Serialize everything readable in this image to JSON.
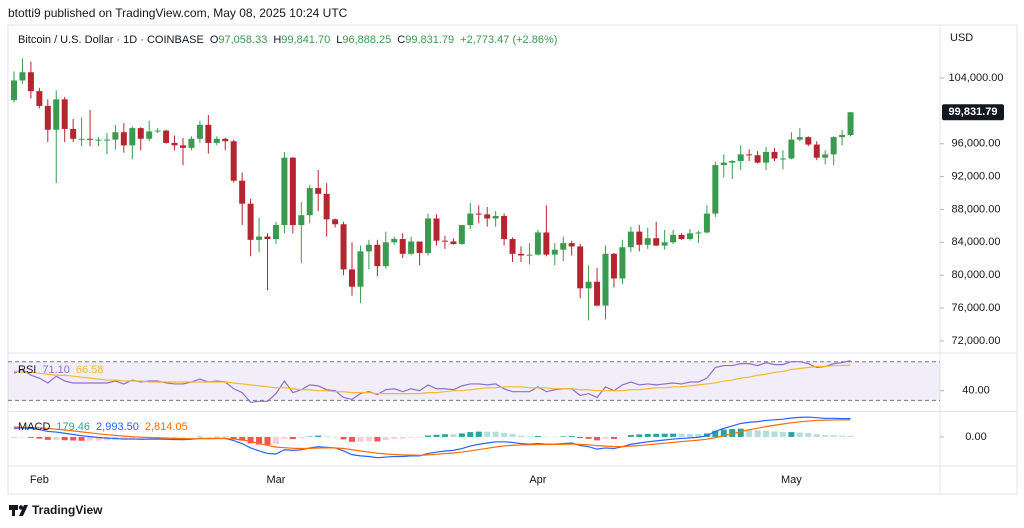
{
  "header": {
    "publisher": "btotti9 published on TradingView.com, May 08, 2025 10:24 UTC",
    "logo": "TradingView"
  },
  "chart_data": [
    {
      "type": "candlestick",
      "title": "Bitcoin / U.S. Dollar · 1D · COINBASE",
      "ohlc_legend": [
        {
          "label": "O",
          "value": "97,058.33"
        },
        {
          "label": "H",
          "value": "99,841.70"
        },
        {
          "label": "L",
          "value": "96,888.25"
        },
        {
          "label": "C",
          "value": "99,831.79"
        }
      ],
      "change": "+2,773.47 (+2.86%)",
      "currency": "USD",
      "up_color": "#3a9a4f",
      "down_color": "#b5252f",
      "categories": [
        null,
        null,
        null,
        "Feb",
        null,
        null,
        null,
        null,
        null,
        null,
        null,
        null,
        null,
        null,
        null,
        null,
        null,
        null,
        null,
        null,
        null,
        null,
        null,
        null,
        null,
        null,
        null,
        null,
        null,
        null,
        null,
        "Mar",
        null,
        null,
        null,
        null,
        null,
        null,
        null,
        null,
        null,
        null,
        null,
        null,
        null,
        null,
        null,
        null,
        null,
        null,
        null,
        null,
        null,
        null,
        null,
        null,
        null,
        null,
        null,
        null,
        null,
        null,
        "Apr",
        null,
        null,
        null,
        null,
        null,
        null,
        null,
        null,
        null,
        null,
        null,
        null,
        null,
        null,
        null,
        null,
        null,
        null,
        null,
        null,
        null,
        null,
        null,
        null,
        null,
        null,
        null,
        null,
        null,
        "May",
        null,
        null,
        null,
        null,
        null,
        null,
        null
      ],
      "open": [
        101300,
        103700,
        104700,
        102400,
        100600,
        97700,
        101400,
        97800,
        96600,
        96600,
        96500,
        96500,
        96500,
        97400,
        95800,
        97900,
        96600,
        97500,
        97600,
        96100,
        95800,
        95500,
        96600,
        98300,
        96100,
        96600,
        96300,
        91500,
        88700,
        84300,
        84700,
        84400,
        86100,
        94300,
        86100,
        87300,
        90600,
        89900,
        86800,
        86200,
        80700,
        78600,
        82900,
        83700,
        81100,
        84000,
        84400,
        82600,
        84100,
        82700,
        86900,
        84200,
        84100,
        83800,
        86100,
        87500,
        87400,
        86900,
        87200,
        84400,
        82600,
        82400,
        82500,
        85200,
        82500,
        83100,
        83900,
        83500,
        78400,
        79200,
        76300,
        82600,
        79600,
        83400,
        85300,
        83700,
        84500,
        83600,
        84000,
        84900,
        84400,
        85100,
        85200,
        87500,
        93400,
        93700,
        93900,
        94700,
        94600,
        93700,
        95000,
        94200,
        94200,
        96500,
        96800,
        95900,
        94300,
        94700,
        96800,
        97058.33
      ],
      "high": [
        104800,
        106400,
        106000,
        102800,
        101400,
        102500,
        101700,
        99000,
        99200,
        100100,
        96800,
        97300,
        98300,
        98500,
        98100,
        98000,
        98800,
        97900,
        97700,
        97000,
        96700,
        96900,
        98800,
        99500,
        96900,
        96700,
        96500,
        92500,
        89300,
        87000,
        85100,
        86500,
        95000,
        94400,
        88900,
        91000,
        92800,
        91200,
        86900,
        86500,
        84000,
        83600,
        84300,
        84300,
        85300,
        84700,
        85100,
        84700,
        84100,
        87500,
        87400,
        84800,
        84500,
        86100,
        88800,
        88500,
        88300,
        87800,
        87500,
        84600,
        83500,
        83900,
        85500,
        88500,
        83900,
        84700,
        84200,
        83800,
        81200,
        80900,
        83600,
        82700,
        84300,
        85900,
        86100,
        85800,
        86500,
        85500,
        85500,
        85100,
        85600,
        85400,
        88500,
        93800,
        94700,
        94000,
        95800,
        95300,
        95100,
        95600,
        95500,
        95200,
        97400,
        97900,
        96900,
        96300,
        95200,
        96900,
        97700,
        99841.7
      ],
      "low": [
        101000,
        103300,
        101500,
        100300,
        96200,
        91200,
        96200,
        96200,
        95700,
        95700,
        95700,
        94700,
        95300,
        94900,
        94100,
        95200,
        96300,
        97300,
        96000,
        95200,
        93400,
        95200,
        96100,
        94800,
        95800,
        95200,
        91300,
        86100,
        82300,
        82800,
        78200,
        83800,
        85100,
        85100,
        81500,
        86300,
        87800,
        84700,
        85800,
        80000,
        77500,
        76600,
        80700,
        79900,
        80800,
        83700,
        82100,
        82400,
        81200,
        82400,
        83600,
        83200,
        83700,
        83700,
        85600,
        86300,
        85900,
        85900,
        83600,
        81600,
        81600,
        81300,
        82400,
        82300,
        81200,
        81700,
        82400,
        77200,
        74500,
        76200,
        74600,
        78500,
        78900,
        82800,
        82900,
        83200,
        83600,
        83100,
        83800,
        84300,
        84200,
        83900,
        85100,
        87100,
        91900,
        91700,
        92800,
        93900,
        93600,
        92800,
        93900,
        92900,
        94100,
        96300,
        95700,
        94000,
        93500,
        93400,
        95800,
        96888.25
      ],
      "close": [
        103700,
        104700,
        102400,
        100600,
        97700,
        101400,
        97800,
        96600,
        96600,
        96500,
        96500,
        96500,
        97400,
        95800,
        97900,
        96600,
        97500,
        97600,
        96100,
        95800,
        95500,
        96600,
        98300,
        96100,
        96600,
        96300,
        91500,
        88700,
        84300,
        84700,
        84400,
        86100,
        94300,
        86100,
        87300,
        90600,
        89900,
        86800,
        86200,
        80700,
        78600,
        82900,
        83700,
        81100,
        84000,
        84400,
        82600,
        84100,
        82700,
        86900,
        84200,
        84100,
        83800,
        86100,
        87500,
        87400,
        86900,
        87200,
        84400,
        82600,
        82400,
        82500,
        85200,
        82500,
        83100,
        83900,
        83500,
        78400,
        79200,
        76300,
        82600,
        79600,
        83400,
        85300,
        83700,
        84500,
        83600,
        84000,
        84900,
        84400,
        85100,
        85200,
        87500,
        93400,
        93700,
        93900,
        94700,
        94600,
        93700,
        95000,
        94200,
        94200,
        96500,
        96800,
        95900,
        94300,
        94700,
        96800,
        97058.33,
        99831.79
      ],
      "last_label": "99,831.79",
      "ylim": [
        70650,
        110450
      ],
      "yticks": [
        {
          "value": 72000,
          "label": "72,000.00"
        },
        {
          "value": 76000,
          "label": "76,000.00"
        },
        {
          "value": 80000,
          "label": "80,000.00"
        },
        {
          "value": 84000,
          "label": "84,000.00"
        },
        {
          "value": 88000,
          "label": "88,000.00"
        },
        {
          "value": 92000,
          "label": "92,000.00"
        },
        {
          "value": 96000,
          "label": "96,000.00"
        },
        {
          "value": 104000,
          "label": "104,000.00"
        }
      ]
    },
    {
      "type": "line",
      "title": "RSI",
      "legend_values": [
        "71.10",
        "66.58"
      ],
      "series": [
        {
          "color": "#8e6fd0",
          "values": [
            58,
            62,
            56,
            53,
            48,
            55,
            50,
            48,
            48,
            48,
            48,
            48,
            50,
            47,
            51,
            49,
            50,
            50,
            48,
            47,
            47,
            49,
            52,
            49,
            50,
            49,
            42,
            38,
            28,
            29,
            29,
            37,
            50,
            38,
            41,
            46,
            45,
            41,
            40,
            33,
            31,
            37,
            39,
            36,
            41,
            42,
            39,
            42,
            40,
            46,
            42,
            42,
            41,
            45,
            47,
            47,
            46,
            47,
            42,
            39,
            39,
            39,
            44,
            39,
            41,
            42,
            42,
            35,
            37,
            33,
            44,
            40,
            46,
            49,
            46,
            47,
            46,
            47,
            48,
            47,
            49,
            49,
            53,
            64,
            66,
            66,
            68,
            68,
            66,
            69,
            67,
            67,
            70,
            70,
            68,
            64,
            65,
            68,
            69,
            71.1
          ]
        },
        {
          "color": "#f5b82e",
          "values": [
            60,
            59,
            59,
            58,
            57,
            56,
            56,
            55,
            54,
            53,
            52,
            51,
            51,
            50,
            50,
            50,
            49,
            49,
            49,
            49,
            49,
            49,
            49,
            49,
            49,
            49,
            48,
            47,
            46,
            45,
            44,
            43,
            43,
            42,
            41,
            41,
            40,
            40,
            39,
            39,
            38,
            38,
            38,
            37,
            37,
            37,
            37,
            37,
            37,
            38,
            38,
            39,
            40,
            40,
            41,
            42,
            43,
            43,
            44,
            44,
            44,
            43,
            43,
            43,
            42,
            42,
            42,
            41,
            41,
            40,
            40,
            40,
            40,
            41,
            41,
            42,
            43,
            43,
            44,
            44,
            45,
            46,
            47,
            48,
            50,
            51,
            53,
            54,
            56,
            57,
            59,
            60,
            62,
            63,
            64,
            65,
            65,
            66,
            66,
            66.58
          ]
        }
      ],
      "bands": [
        30,
        70
      ],
      "band_color": "#7e57c2",
      "ylim": [
        19,
        79
      ],
      "yticks": [
        {
          "value": 40,
          "label": "40.00"
        }
      ]
    },
    {
      "type": "combo",
      "title": "MACD",
      "legend_values": [
        "179.46",
        "2,993.50",
        "2,814.05"
      ],
      "series": [
        {
          "kind": "bar",
          "color": "#26a69a",
          "colors": {
            "grow_above": "#26a69a",
            "fall_above": "#b2dfdb",
            "grow_below": "#ffcdd2",
            "fall_below": "#ff5252"
          },
          "values": [
            -200,
            -80,
            -150,
            -290,
            -480,
            -470,
            -540,
            -590,
            -630,
            -620,
            -610,
            -570,
            -500,
            -480,
            -370,
            -340,
            -260,
            -190,
            -180,
            -180,
            -160,
            -80,
            40,
            20,
            20,
            20,
            -260,
            -610,
            -1050,
            -1240,
            -1310,
            -1130,
            -340,
            -350,
            -200,
            80,
            220,
            100,
            0,
            -400,
            -800,
            -800,
            -720,
            -740,
            -510,
            -330,
            -260,
            -130,
            -100,
            240,
            350,
            440,
            430,
            580,
            790,
            870,
            860,
            850,
            680,
            460,
            210,
            90,
            150,
            40,
            30,
            100,
            160,
            -190,
            -310,
            -570,
            -300,
            -320,
            -10,
            310,
            410,
            490,
            510,
            530,
            540,
            510,
            490,
            470,
            570,
            1010,
            1210,
            1290,
            1350,
            1240,
            1070,
            1010,
            890,
            790,
            790,
            730,
            650,
            450,
            300,
            270,
            210,
            179.46
          ]
        },
        {
          "kind": "line",
          "color": "#2962ff",
          "values": [
            1400,
            1500,
            1400,
            1200,
            900,
            800,
            600,
            400,
            200,
            50,
            -100,
            -200,
            -250,
            -350,
            -330,
            -380,
            -360,
            -340,
            -380,
            -420,
            -440,
            -380,
            -250,
            -260,
            -250,
            -250,
            -600,
            -1100,
            -1800,
            -2300,
            -2700,
            -2800,
            -2100,
            -2200,
            -2100,
            -1800,
            -1600,
            -1700,
            -1800,
            -2300,
            -2900,
            -3100,
            -3200,
            -3400,
            -3300,
            -3200,
            -3200,
            -3100,
            -3100,
            -2700,
            -2500,
            -2300,
            -2200,
            -1900,
            -1500,
            -1200,
            -1000,
            -800,
            -800,
            -900,
            -1100,
            -1200,
            -1100,
            -1200,
            -1200,
            -1100,
            -1000,
            -1400,
            -1600,
            -2000,
            -1800,
            -1900,
            -1600,
            -1200,
            -1000,
            -800,
            -650,
            -500,
            -350,
            -250,
            -150,
            -50,
            200,
            900,
            1400,
            1800,
            2200,
            2400,
            2500,
            2700,
            2800,
            2900,
            3100,
            3200,
            3250,
            3150,
            3050,
            3050,
            3000,
            2993.5
          ]
        },
        {
          "kind": "line",
          "color": "#ff6d00",
          "values": [
            1600,
            1580,
            1550,
            1490,
            1380,
            1270,
            1140,
            990,
            830,
            670,
            510,
            370,
            250,
            130,
            40,
            -40,
            -100,
            -150,
            -200,
            -240,
            -280,
            -300,
            -290,
            -280,
            -270,
            -270,
            -340,
            -490,
            -750,
            -1060,
            -1390,
            -1670,
            -1760,
            -1850,
            -1900,
            -1880,
            -1820,
            -1800,
            -1800,
            -1900,
            -2100,
            -2300,
            -2480,
            -2660,
            -2790,
            -2870,
            -2940,
            -2970,
            -3000,
            -2940,
            -2850,
            -2740,
            -2630,
            -2480,
            -2290,
            -2070,
            -1860,
            -1650,
            -1480,
            -1360,
            -1310,
            -1290,
            -1250,
            -1240,
            -1230,
            -1200,
            -1160,
            -1210,
            -1290,
            -1430,
            -1500,
            -1580,
            -1590,
            -1510,
            -1410,
            -1290,
            -1160,
            -1030,
            -890,
            -760,
            -640,
            -520,
            -370,
            -110,
            190,
            510,
            850,
            1160,
            1430,
            1690,
            1910,
            2110,
            2310,
            2470,
            2600,
            2700,
            2750,
            2780,
            2790,
            2814.05
          ]
        }
      ],
      "ylim": [
        -4760,
        4080
      ],
      "yticks": [
        {
          "value": 0,
          "label": "0.00"
        }
      ]
    }
  ]
}
